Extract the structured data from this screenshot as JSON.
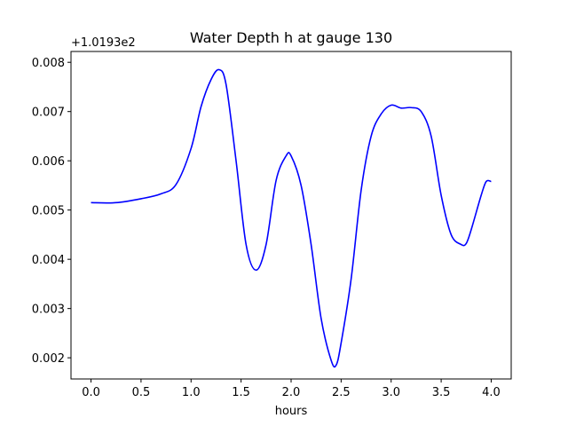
{
  "chart_data": {
    "type": "line",
    "title": "Water Depth h at gauge 130",
    "xlabel": "hours",
    "ylabel": "",
    "y_offset_label": "+1.0193e2",
    "xlim": [
      -0.2,
      4.2
    ],
    "ylim": [
      0.00157,
      0.00822
    ],
    "x_ticks": [
      0.0,
      0.5,
      1.0,
      1.5,
      2.0,
      2.5,
      3.0,
      3.5,
      4.0
    ],
    "x_tick_labels": [
      "0.0",
      "0.5",
      "1.0",
      "1.5",
      "2.0",
      "2.5",
      "3.0",
      "3.5",
      "4.0"
    ],
    "y_ticks": [
      0.002,
      0.003,
      0.004,
      0.005,
      0.006,
      0.007,
      0.008
    ],
    "y_tick_labels": [
      "0.002",
      "0.003",
      "0.004",
      "0.005",
      "0.006",
      "0.007",
      "0.008"
    ],
    "grid": false,
    "series": [
      {
        "color": "#0000ff",
        "x": [
          0.0,
          0.25,
          0.5,
          0.7,
          0.85,
          1.0,
          1.1,
          1.2,
          1.28,
          1.35,
          1.45,
          1.55,
          1.65,
          1.75,
          1.85,
          1.95,
          2.0,
          2.1,
          2.2,
          2.3,
          2.4,
          2.45,
          2.5,
          2.6,
          2.7,
          2.8,
          2.9,
          3.0,
          3.1,
          3.2,
          3.3,
          3.4,
          3.5,
          3.6,
          3.7,
          3.75,
          3.8,
          3.9,
          3.95,
          4.0
        ],
        "y": [
          0.00515,
          0.00515,
          0.00523,
          0.00533,
          0.00552,
          0.00625,
          0.0071,
          0.00765,
          0.00785,
          0.00755,
          0.006,
          0.0043,
          0.00378,
          0.0043,
          0.0056,
          0.0061,
          0.0061,
          0.0055,
          0.0043,
          0.0028,
          0.00195,
          0.00185,
          0.0023,
          0.0036,
          0.0054,
          0.0065,
          0.00695,
          0.00713,
          0.00707,
          0.00708,
          0.007,
          0.0065,
          0.0053,
          0.0045,
          0.0043,
          0.00432,
          0.0046,
          0.0053,
          0.00558,
          0.00558
        ]
      }
    ]
  }
}
